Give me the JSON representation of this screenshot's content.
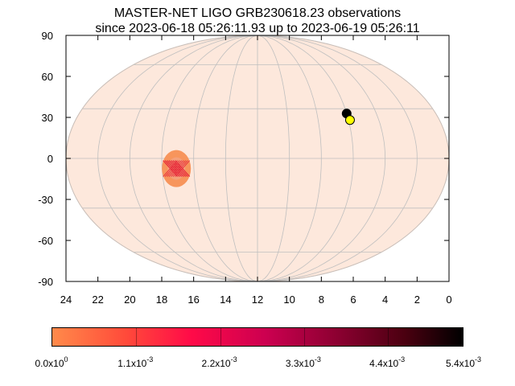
{
  "chart_data": {
    "type": "scatter",
    "title_lines": [
      "MASTER-NET LIGO GRB230618.23 observations",
      "since 2023-06-18 05:26:11.93 up to 2023-06-19 05:26:11"
    ],
    "projection": "mollweide",
    "xlabel": "",
    "ylabel": "",
    "x_range_hours": [
      24,
      0
    ],
    "y_range_deg": [
      -90,
      90
    ],
    "x_ticks": [
      "24",
      "22",
      "20",
      "18",
      "16",
      "14",
      "12",
      "10",
      "8",
      "6",
      "4",
      "2",
      "0"
    ],
    "y_ticks": [
      "90",
      "60",
      "30",
      "0",
      "-30",
      "-60",
      "-90"
    ],
    "grid": true,
    "sky_fill_color": "#fde8dc",
    "probability_region": {
      "ra_hours": 17.1,
      "dec_deg": -6,
      "outer_color": "#f7955c",
      "inner_color": "#e8303e"
    },
    "markers": [
      {
        "ra_hours": 6.0,
        "dec_deg": 27,
        "color": "#000000"
      },
      {
        "ra_hours": 5.9,
        "dec_deg": 23,
        "color": "#ffff00"
      }
    ],
    "colorbar": {
      "min": 0,
      "max": 0.0054,
      "tick_values": [
        0,
        0.0011,
        0.0022,
        0.0033,
        0.0044,
        0.0054
      ],
      "labels": [
        {
          "mantissa": "0.0x10",
          "exponent": "0"
        },
        {
          "mantissa": "1.1x10",
          "exponent": "-3"
        },
        {
          "mantissa": "2.2x10",
          "exponent": "-3"
        },
        {
          "mantissa": "3.3x10",
          "exponent": "-3"
        },
        {
          "mantissa": "4.4x10",
          "exponent": "-3"
        },
        {
          "mantissa": "5.4x10",
          "exponent": "-3"
        }
      ],
      "colors": [
        "#ff8a4a",
        "#ff4a3a",
        "#ff0a48",
        "#cc0050",
        "#8a0030",
        "#4a0010",
        "#000000"
      ]
    }
  }
}
